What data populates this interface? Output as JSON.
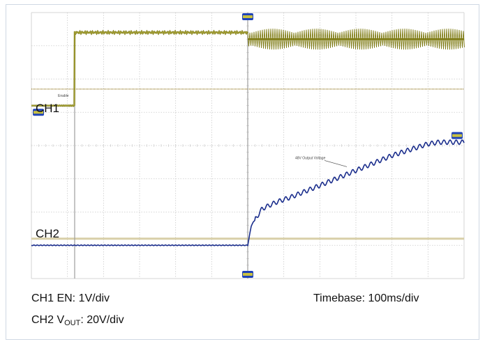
{
  "channels": {
    "ch1_label": "CH1",
    "ch2_label": "CH2"
  },
  "legend": {
    "ch1_text": "CH1 EN: 1V/div",
    "ch2_prefix": "CH2 V",
    "ch2_sub": "OUT",
    "ch2_suffix": ": 20V/div",
    "timebase": "Timebase: 100ms/div"
  },
  "annotations": {
    "ch1_trace_tag": "Enable",
    "ch2_trace_tag": "48V Output Voltage"
  },
  "colors": {
    "ch1_trace": "#7d7a12",
    "ch1_trace_light": "#b8b34a",
    "ch2_trace": "#1a2d8c",
    "grid": "#c9c9c9",
    "gridline_major": "#bdbdbd",
    "ch1_ground": "#b5a36a",
    "ch2_ground": "#d8cfa8",
    "marker_blue": "#1f43b8",
    "marker_yellow": "#c8c040",
    "cursor": "#9e9e9e"
  },
  "chart_data": {
    "type": "line",
    "grid_divisions": {
      "x": 12,
      "y": 8
    },
    "grid": true,
    "series": [
      {
        "name": "CH1",
        "unit_per_div": "1V/div",
        "x_div": [
          0,
          1.2,
          1.2,
          6.0,
          6.0,
          12.0
        ],
        "y_div": [
          5.2,
          5.2,
          7.4,
          7.4,
          7.2,
          7.2
        ],
        "note": "noisy plateau; oscillating after x=6.0 div"
      },
      {
        "name": "CH2",
        "unit_per_div": "20V/div",
        "x_div": [
          0,
          6.0,
          6.1,
          6.4,
          6.8,
          7.2,
          8.0,
          9.0,
          10.0,
          11.0,
          11.3,
          12.0
        ],
        "y_div": [
          1.0,
          1.0,
          1.6,
          2.1,
          2.3,
          2.45,
          2.8,
          3.25,
          3.7,
          4.05,
          4.1,
          4.1
        ],
        "note": "ripple on ramp"
      }
    ],
    "reference_levels_div": {
      "ch1_ground": 5.7,
      "ch2_ground": 1.2
    },
    "trigger_x_div": 6.0,
    "cursor_x_div": 1.2
  }
}
